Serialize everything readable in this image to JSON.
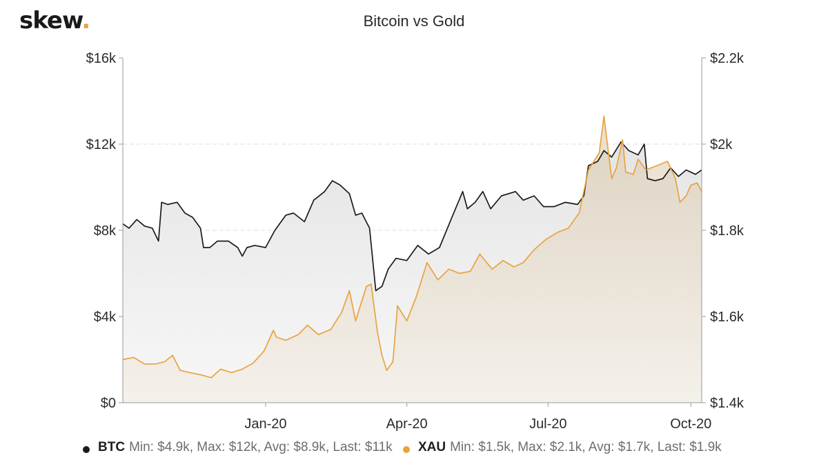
{
  "logo": {
    "text": "skew",
    "dot": "."
  },
  "chart_data": {
    "type": "line",
    "title": "Bitcoin vs Gold",
    "xlabel": "",
    "x_ticks": [
      "Jan-20",
      "Apr-20",
      "Jul-20",
      "Oct-20"
    ],
    "x_range": [
      "2019-10-01",
      "2020-10-08"
    ],
    "y_left": {
      "ylim": [
        0,
        16000
      ],
      "ticks": [
        0,
        4000,
        8000,
        12000,
        16000
      ],
      "tick_labels": [
        "$0",
        "$4k",
        "$8k",
        "$12k",
        "$16k"
      ]
    },
    "y_right": {
      "ylim": [
        1400,
        2200
      ],
      "ticks": [
        1400,
        1600,
        1800,
        2000,
        2200
      ],
      "tick_labels": [
        "$1.4k",
        "$1.6k",
        "$1.8k",
        "$2k",
        "$2.2k"
      ]
    },
    "grid": true,
    "legend_position": "bottom",
    "series": [
      {
        "name": "BTC",
        "axis": "left",
        "color": "#1a1a1a",
        "stats": "Min: $4.9k, Max: $12k, Avg: $8.9k, Last: $11k",
        "points": [
          [
            "2019-10-01",
            8300
          ],
          [
            "2019-10-05",
            8100
          ],
          [
            "2019-10-10",
            8500
          ],
          [
            "2019-10-15",
            8200
          ],
          [
            "2019-10-20",
            8100
          ],
          [
            "2019-10-24",
            7500
          ],
          [
            "2019-10-26",
            9300
          ],
          [
            "2019-10-30",
            9200
          ],
          [
            "2019-11-05",
            9300
          ],
          [
            "2019-11-10",
            8800
          ],
          [
            "2019-11-15",
            8600
          ],
          [
            "2019-11-20",
            8100
          ],
          [
            "2019-11-22",
            7200
          ],
          [
            "2019-11-26",
            7200
          ],
          [
            "2019-12-01",
            7500
          ],
          [
            "2019-12-08",
            7500
          ],
          [
            "2019-12-14",
            7200
          ],
          [
            "2019-12-17",
            6800
          ],
          [
            "2019-12-20",
            7200
          ],
          [
            "2019-12-25",
            7300
          ],
          [
            "2020-01-01",
            7200
          ],
          [
            "2020-01-07",
            8000
          ],
          [
            "2020-01-14",
            8700
          ],
          [
            "2020-01-19",
            8800
          ],
          [
            "2020-01-26",
            8400
          ],
          [
            "2020-02-01",
            9400
          ],
          [
            "2020-02-08",
            9800
          ],
          [
            "2020-02-13",
            10300
          ],
          [
            "2020-02-18",
            10100
          ],
          [
            "2020-02-24",
            9700
          ],
          [
            "2020-02-28",
            8700
          ],
          [
            "2020-03-03",
            8800
          ],
          [
            "2020-03-08",
            8100
          ],
          [
            "2020-03-12",
            5200
          ],
          [
            "2020-03-16",
            5400
          ],
          [
            "2020-03-20",
            6200
          ],
          [
            "2020-03-25",
            6700
          ],
          [
            "2020-04-01",
            6600
          ],
          [
            "2020-04-08",
            7300
          ],
          [
            "2020-04-15",
            6900
          ],
          [
            "2020-04-22",
            7200
          ],
          [
            "2020-04-30",
            8600
          ],
          [
            "2020-05-07",
            9800
          ],
          [
            "2020-05-10",
            9000
          ],
          [
            "2020-05-15",
            9300
          ],
          [
            "2020-05-20",
            9800
          ],
          [
            "2020-05-25",
            9000
          ],
          [
            "2020-06-01",
            9600
          ],
          [
            "2020-06-10",
            9800
          ],
          [
            "2020-06-15",
            9400
          ],
          [
            "2020-06-22",
            9600
          ],
          [
            "2020-06-28",
            9100
          ],
          [
            "2020-07-05",
            9100
          ],
          [
            "2020-07-12",
            9300
          ],
          [
            "2020-07-20",
            9200
          ],
          [
            "2020-07-24",
            9600
          ],
          [
            "2020-07-27",
            11000
          ],
          [
            "2020-08-02",
            11200
          ],
          [
            "2020-08-06",
            11700
          ],
          [
            "2020-08-11",
            11400
          ],
          [
            "2020-08-17",
            12100
          ],
          [
            "2020-08-22",
            11700
          ],
          [
            "2020-08-28",
            11500
          ],
          [
            "2020-09-01",
            12000
          ],
          [
            "2020-09-03",
            10400
          ],
          [
            "2020-09-08",
            10300
          ],
          [
            "2020-09-13",
            10400
          ],
          [
            "2020-09-18",
            10900
          ],
          [
            "2020-09-23",
            10500
          ],
          [
            "2020-09-28",
            10800
          ],
          [
            "2020-10-04",
            10600
          ],
          [
            "2020-10-08",
            10800
          ]
        ]
      },
      {
        "name": "XAU",
        "axis": "right",
        "color": "#e8a33d",
        "stats": "Min: $1.5k, Max: $2.1k, Avg: $1.7k, Last: $1.9k",
        "points": [
          [
            "2019-10-01",
            1500
          ],
          [
            "2019-10-08",
            1505
          ],
          [
            "2019-10-15",
            1490
          ],
          [
            "2019-10-22",
            1490
          ],
          [
            "2019-10-28",
            1495
          ],
          [
            "2019-11-02",
            1510
          ],
          [
            "2019-11-07",
            1475
          ],
          [
            "2019-11-13",
            1470
          ],
          [
            "2019-11-20",
            1465
          ],
          [
            "2019-11-27",
            1458
          ],
          [
            "2019-12-03",
            1478
          ],
          [
            "2019-12-10",
            1470
          ],
          [
            "2019-12-17",
            1478
          ],
          [
            "2019-12-24",
            1492
          ],
          [
            "2019-12-31",
            1520
          ],
          [
            "2020-01-06",
            1568
          ],
          [
            "2020-01-08",
            1552
          ],
          [
            "2020-01-14",
            1545
          ],
          [
            "2020-01-22",
            1558
          ],
          [
            "2020-01-28",
            1580
          ],
          [
            "2020-02-04",
            1558
          ],
          [
            "2020-02-12",
            1570
          ],
          [
            "2020-02-19",
            1610
          ],
          [
            "2020-02-24",
            1660
          ],
          [
            "2020-02-28",
            1590
          ],
          [
            "2020-03-06",
            1670
          ],
          [
            "2020-03-09",
            1675
          ],
          [
            "2020-03-13",
            1565
          ],
          [
            "2020-03-16",
            1510
          ],
          [
            "2020-03-19",
            1475
          ],
          [
            "2020-03-23",
            1495
          ],
          [
            "2020-03-26",
            1625
          ],
          [
            "2020-04-01",
            1590
          ],
          [
            "2020-04-07",
            1645
          ],
          [
            "2020-04-14",
            1725
          ],
          [
            "2020-04-21",
            1685
          ],
          [
            "2020-04-28",
            1710
          ],
          [
            "2020-05-05",
            1700
          ],
          [
            "2020-05-12",
            1705
          ],
          [
            "2020-05-18",
            1745
          ],
          [
            "2020-05-26",
            1710
          ],
          [
            "2020-06-02",
            1730
          ],
          [
            "2020-06-09",
            1715
          ],
          [
            "2020-06-15",
            1725
          ],
          [
            "2020-06-22",
            1755
          ],
          [
            "2020-06-30",
            1780
          ],
          [
            "2020-07-07",
            1795
          ],
          [
            "2020-07-14",
            1805
          ],
          [
            "2020-07-21",
            1840
          ],
          [
            "2020-07-27",
            1940
          ],
          [
            "2020-08-03",
            1980
          ],
          [
            "2020-08-06",
            2065
          ],
          [
            "2020-08-11",
            1920
          ],
          [
            "2020-08-14",
            1945
          ],
          [
            "2020-08-18",
            2010
          ],
          [
            "2020-08-20",
            1935
          ],
          [
            "2020-08-25",
            1930
          ],
          [
            "2020-08-28",
            1965
          ],
          [
            "2020-09-02",
            1940
          ],
          [
            "2020-09-09",
            1950
          ],
          [
            "2020-09-16",
            1960
          ],
          [
            "2020-09-21",
            1920
          ],
          [
            "2020-09-24",
            1865
          ],
          [
            "2020-09-28",
            1880
          ],
          [
            "2020-10-01",
            1905
          ],
          [
            "2020-10-05",
            1910
          ],
          [
            "2020-10-08",
            1890
          ]
        ]
      }
    ]
  }
}
